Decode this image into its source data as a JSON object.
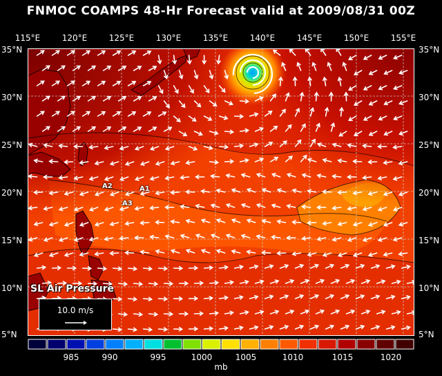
{
  "title": "FNMOC COAMPS 48-Hr Forecast valid at 2009/08/31 00Z",
  "field_label": "SL Air Pressure",
  "wind_scale_label": "10.0 m/s",
  "longitude_ticks": [
    "115°E",
    "120°E",
    "125°E",
    "130°E",
    "135°E",
    "140°E",
    "145°E",
    "150°E",
    "155°E"
  ],
  "latitude_ticks": [
    "35°N",
    "30°N",
    "25°N",
    "20°N",
    "15°N",
    "10°N",
    "5°N"
  ],
  "markers": [
    "A1",
    "A2",
    "A3"
  ],
  "colorbar": {
    "unit": "mb",
    "tick_labels": [
      "985",
      "990",
      "995",
      "1000",
      "1005",
      "1010",
      "1015",
      "1020"
    ],
    "colors": [
      "#00003a",
      "#00006e",
      "#0010b0",
      "#0040e0",
      "#0080ff",
      "#00b0ff",
      "#00e0e0",
      "#00c030",
      "#80e000",
      "#d8f000",
      "#ffe000",
      "#ffb000",
      "#ff8000",
      "#ff5a00",
      "#f03000",
      "#d81800",
      "#b00000",
      "#880000",
      "#600000",
      "#400000"
    ]
  },
  "colors": {
    "ocean_high": "#c00000",
    "ocean_mid": "#ff3c00",
    "ocean_low": "#ff6400",
    "land": "#900000",
    "vectors": "#ffffff"
  },
  "typhoon": {
    "longitude": 139.5,
    "latitude": 33.0,
    "name": ""
  }
}
